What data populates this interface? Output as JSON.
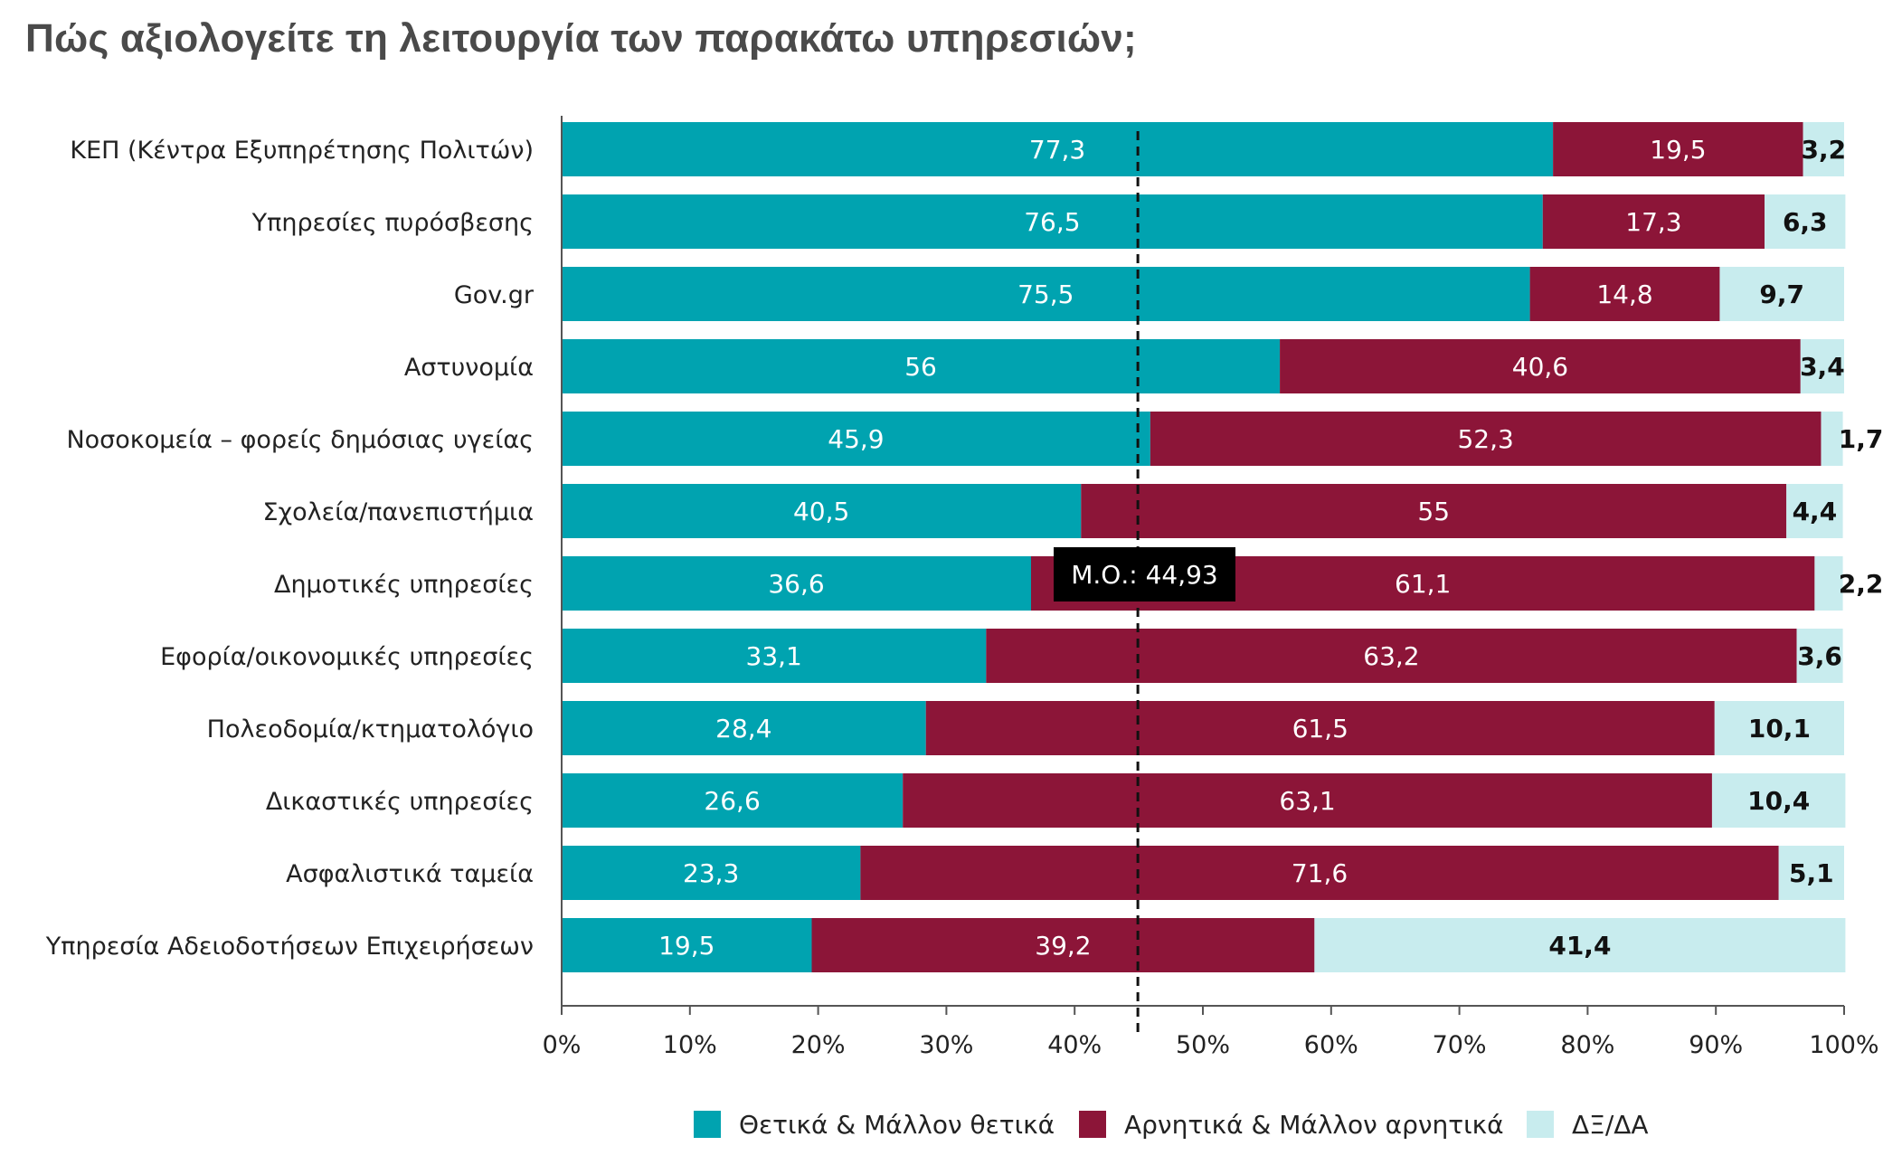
{
  "title": "Πώς αξιολογείτε τη λειτουργία των παρακάτω υπηρεσιών;",
  "chart_data": {
    "type": "bar",
    "orientation": "horizontal",
    "stacked": true,
    "categories": [
      "ΚΕΠ (Κέντρα Εξυπηρέτησης Πολιτών)",
      "Υπηρεσίες πυρόσβεσης",
      "Gov.gr",
      "Αστυνομία",
      "Νοσοκομεία – φορείς δημόσιας υγείας",
      "Σχολεία/πανεπιστήμια",
      "Δημοτικές υπηρεσίες",
      "Εφορία/οικονομικές υπηρεσίες",
      "Πολεοδομία/κτηματολόγιο",
      "Δικαστικές υπηρεσίες",
      "Ασφαλιστικά ταμεία",
      "Υπηρεσία Αδειοδοτήσεων Επιχειρήσεων"
    ],
    "series": [
      {
        "name": "Θετικά & Μάλλον θετικά",
        "color": "#00A3B0",
        "label_color": "#ffffff",
        "values": [
          77.3,
          76.5,
          75.5,
          56,
          45.9,
          40.5,
          36.6,
          33.1,
          28.4,
          26.6,
          23.3,
          19.5
        ]
      },
      {
        "name": "Αρνητικά & Μάλλον αρνητικά",
        "color": "#8C1538",
        "label_color": "#ffffff",
        "values": [
          19.5,
          17.3,
          14.8,
          40.6,
          52.3,
          55,
          61.1,
          63.2,
          61.5,
          63.1,
          71.6,
          39.2
        ]
      },
      {
        "name": "ΔΞ/ΔΑ",
        "color": "#C8ECEE",
        "label_color": "#111111",
        "values": [
          3.2,
          6.3,
          9.7,
          3.4,
          1.7,
          4.4,
          2.2,
          3.6,
          10.1,
          10.4,
          5.1,
          41.4
        ]
      }
    ],
    "x_ticks": [
      "0%",
      "10%",
      "20%",
      "30%",
      "40%",
      "50%",
      "60%",
      "70%",
      "80%",
      "90%",
      "100%"
    ],
    "xlim": [
      0,
      100
    ],
    "mean_line": {
      "value": 44.93,
      "label": "Μ.Ο.: 44,93"
    },
    "legend_position": "bottom",
    "grid": false
  }
}
